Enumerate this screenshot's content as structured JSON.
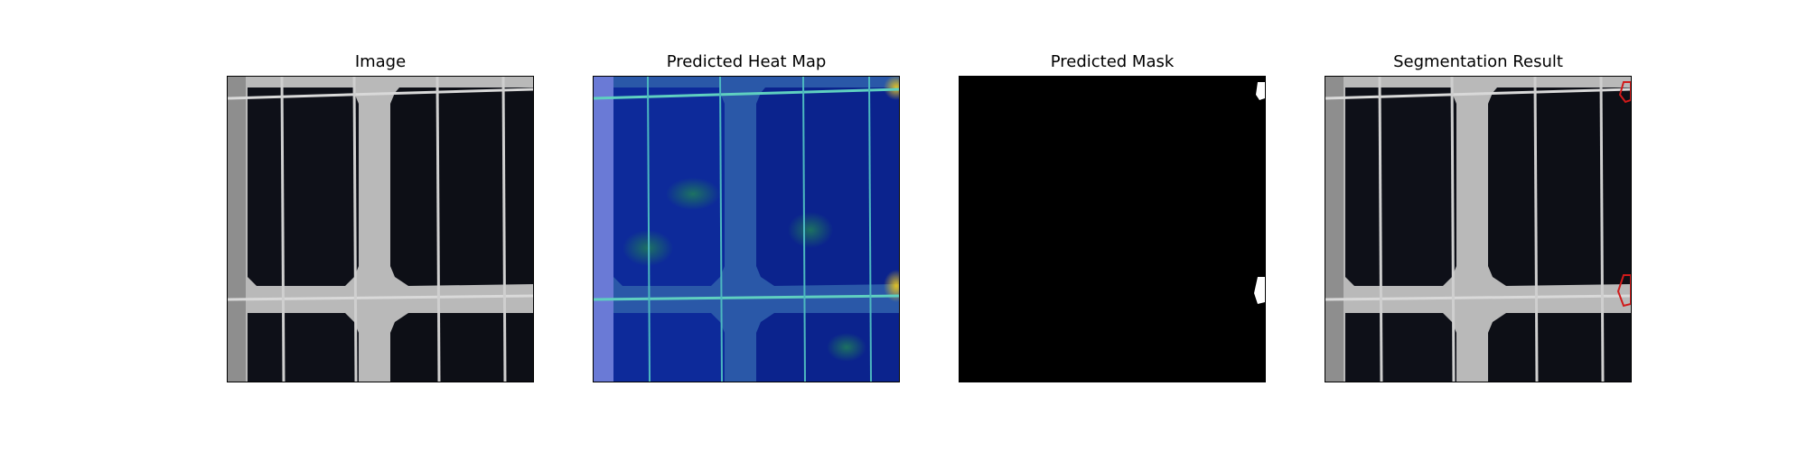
{
  "figure": {
    "panels": [
      {
        "title": "Image"
      },
      {
        "title": "Predicted Heat Map"
      },
      {
        "title": "Predicted Mask"
      },
      {
        "title": "Segmentation Result"
      }
    ]
  },
  "colors": {
    "cell": "#0e1018",
    "background_gap": "#b9b9b9",
    "busbar": "#d9d9d9",
    "heat_low": "#0b1f8f",
    "heat_mid": "#1d6fb3",
    "heat_high": "#e0c024",
    "mask_bg": "#000000",
    "mask_fg": "#ffffff",
    "contour": "#d11a1a"
  }
}
